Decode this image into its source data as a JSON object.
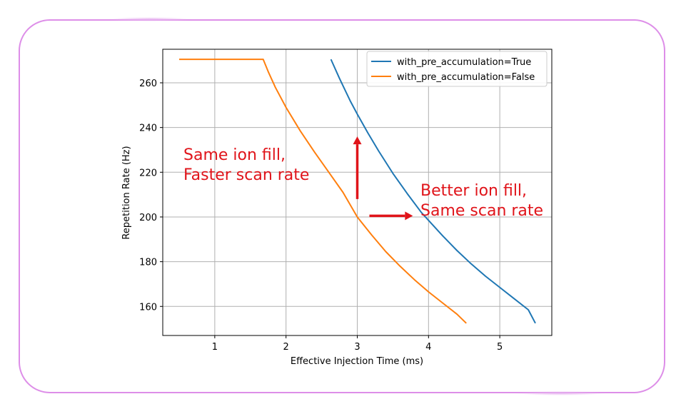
{
  "chart_data": {
    "type": "line",
    "title": "",
    "xlabel": "Effective Injection Time (ms)",
    "ylabel": "Repetition Rate (Hz)",
    "xlim": [
      0.27,
      5.73
    ],
    "ylim": [
      147,
      275
    ],
    "xticks": [
      "1",
      "2",
      "3",
      "4",
      "5"
    ],
    "yticks": [
      "160",
      "180",
      "200",
      "220",
      "240",
      "260"
    ],
    "grid": true,
    "legend_position": "top-right",
    "series": [
      {
        "name": "with_pre_accumulation=True",
        "color": "#1f77b4",
        "x": [
          2.63,
          2.75,
          2.9,
          3.0,
          3.15,
          3.3,
          3.5,
          3.7,
          3.9,
          4.0,
          4.2,
          4.4,
          4.6,
          4.8,
          5.0,
          5.2,
          5.4,
          5.5
        ],
        "y": [
          270.5,
          262,
          252,
          246,
          237.5,
          229.5,
          219.5,
          210.5,
          202,
          198.5,
          191.5,
          185,
          179,
          173.5,
          168.5,
          163.5,
          158.5,
          152.5
        ]
      },
      {
        "name": "with_pre_accumulation=False",
        "color": "#ff7f0e",
        "x": [
          0.5,
          0.8,
          1.1,
          1.4,
          1.68,
          1.75,
          1.85,
          2.0,
          2.2,
          2.4,
          2.6,
          2.8,
          3.0,
          3.2,
          3.4,
          3.6,
          3.8,
          4.0,
          4.2,
          4.4,
          4.53
        ],
        "y": [
          270.5,
          270.5,
          270.5,
          270.5,
          270.5,
          265,
          258,
          249,
          238.5,
          229,
          220,
          211,
          200,
          192,
          184.5,
          178,
          172,
          166.5,
          161.5,
          156.5,
          152.5
        ]
      }
    ],
    "annotations": [
      {
        "text_lines": [
          "Same ion fill,",
          "Faster scan rate"
        ],
        "color": "#e0141a"
      },
      {
        "text_lines": [
          "Better ion fill,",
          "Same scan rate"
        ],
        "color": "#e0141a"
      }
    ],
    "arrows": [
      {
        "direction": "up",
        "from": [
          3.0,
          208
        ],
        "to": [
          3.0,
          236
        ],
        "color": "#e0141a"
      },
      {
        "direction": "right",
        "from": [
          3.17,
          200.5
        ],
        "to": [
          3.78,
          200.5
        ],
        "color": "#e0141a"
      }
    ]
  }
}
